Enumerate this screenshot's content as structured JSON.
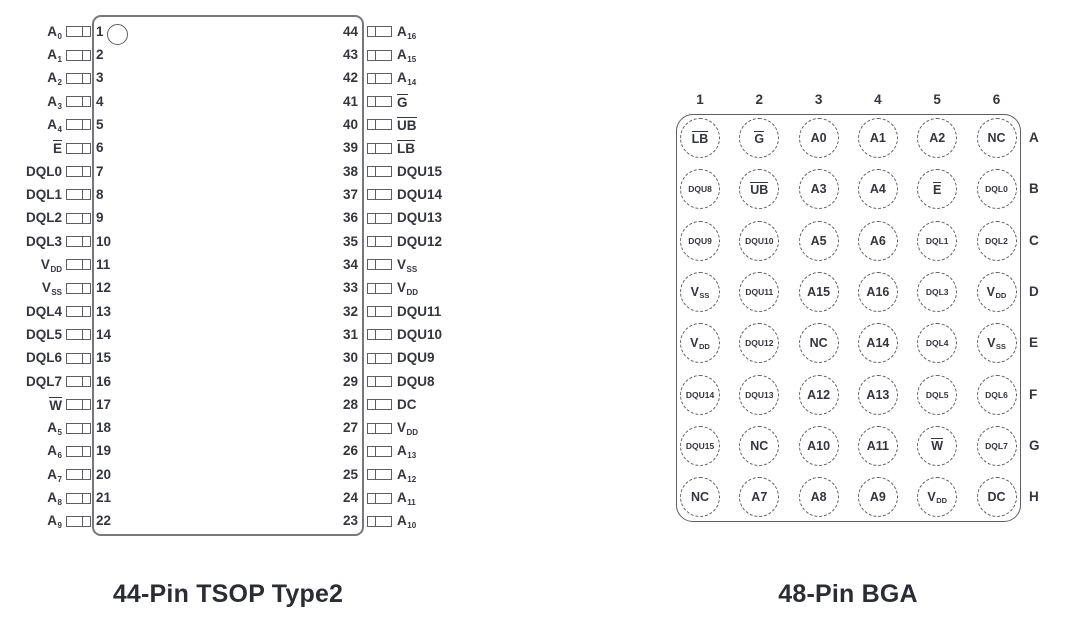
{
  "palette": {
    "line": "#77787b",
    "line_dark": "#5e5f63",
    "text": "#34363f",
    "title": "#2b2d35",
    "background": "#ffffff"
  },
  "tsop": {
    "title": "44-Pin TSOP Type2",
    "pin1_indicator": "circle",
    "left_pins": [
      {
        "num": "1",
        "label": "A_0"
      },
      {
        "num": "2",
        "label": "A_1"
      },
      {
        "num": "3",
        "label": "A_2"
      },
      {
        "num": "4",
        "label": "A_3"
      },
      {
        "num": "5",
        "label": "A_4"
      },
      {
        "num": "6",
        "label": "~E"
      },
      {
        "num": "7",
        "label": "DQL0"
      },
      {
        "num": "8",
        "label": "DQL1"
      },
      {
        "num": "9",
        "label": "DQL2"
      },
      {
        "num": "10",
        "label": "DQL3"
      },
      {
        "num": "11",
        "label": "V_DD"
      },
      {
        "num": "12",
        "label": "V_SS"
      },
      {
        "num": "13",
        "label": "DQL4"
      },
      {
        "num": "14",
        "label": "DQL5"
      },
      {
        "num": "15",
        "label": "DQL6"
      },
      {
        "num": "16",
        "label": "DQL7"
      },
      {
        "num": "17",
        "label": "~W"
      },
      {
        "num": "18",
        "label": "A_5"
      },
      {
        "num": "19",
        "label": "A_6"
      },
      {
        "num": "20",
        "label": "A_7"
      },
      {
        "num": "21",
        "label": "A_8"
      },
      {
        "num": "22",
        "label": "A_9"
      }
    ],
    "right_pins": [
      {
        "num": "44",
        "label": "A_16"
      },
      {
        "num": "43",
        "label": "A_15"
      },
      {
        "num": "42",
        "label": "A_14"
      },
      {
        "num": "41",
        "label": "~G"
      },
      {
        "num": "40",
        "label": "~UB"
      },
      {
        "num": "39",
        "label": "~LB"
      },
      {
        "num": "38",
        "label": "DQU15"
      },
      {
        "num": "37",
        "label": "DQU14"
      },
      {
        "num": "36",
        "label": "DQU13"
      },
      {
        "num": "35",
        "label": "DQU12"
      },
      {
        "num": "34",
        "label": "V_SS"
      },
      {
        "num": "33",
        "label": "V_DD"
      },
      {
        "num": "32",
        "label": "DQU11"
      },
      {
        "num": "31",
        "label": "DQU10"
      },
      {
        "num": "30",
        "label": "DQU9"
      },
      {
        "num": "29",
        "label": "DQU8"
      },
      {
        "num": "28",
        "label": "DC"
      },
      {
        "num": "27",
        "label": "V_DD"
      },
      {
        "num": "26",
        "label": "A_13"
      },
      {
        "num": "25",
        "label": "A_12"
      },
      {
        "num": "24",
        "label": "A_11"
      },
      {
        "num": "23",
        "label": "A_10"
      }
    ]
  },
  "bga": {
    "title": "48-Pin BGA",
    "col_headers": [
      "1",
      "2",
      "3",
      "4",
      "5",
      "6"
    ],
    "row_headers": [
      "A",
      "B",
      "C",
      "D",
      "E",
      "F",
      "G",
      "H"
    ],
    "grid": [
      [
        "~LB",
        "~G",
        "A0",
        "A1",
        "A2",
        "NC"
      ],
      [
        "DQU8",
        "~UB",
        "A3",
        "A4",
        "~E",
        "DQL0"
      ],
      [
        "DQU9",
        "DQU10",
        "A5",
        "A6",
        "DQL1",
        "DQL2"
      ],
      [
        "V_SS",
        "DQU11",
        "A15",
        "A16",
        "DQL3",
        "V_DD"
      ],
      [
        "V_DD",
        "DQU12",
        "NC",
        "A14",
        "DQL4",
        "V_SS"
      ],
      [
        "DQU14",
        "DQU13",
        "A12",
        "A13",
        "DQL5",
        "DQL6"
      ],
      [
        "DQU15",
        "NC",
        "A10",
        "A11",
        "~W",
        "DQL7"
      ],
      [
        "NC",
        "A7",
        "A8",
        "A9",
        "V_DD",
        "DC"
      ]
    ]
  }
}
